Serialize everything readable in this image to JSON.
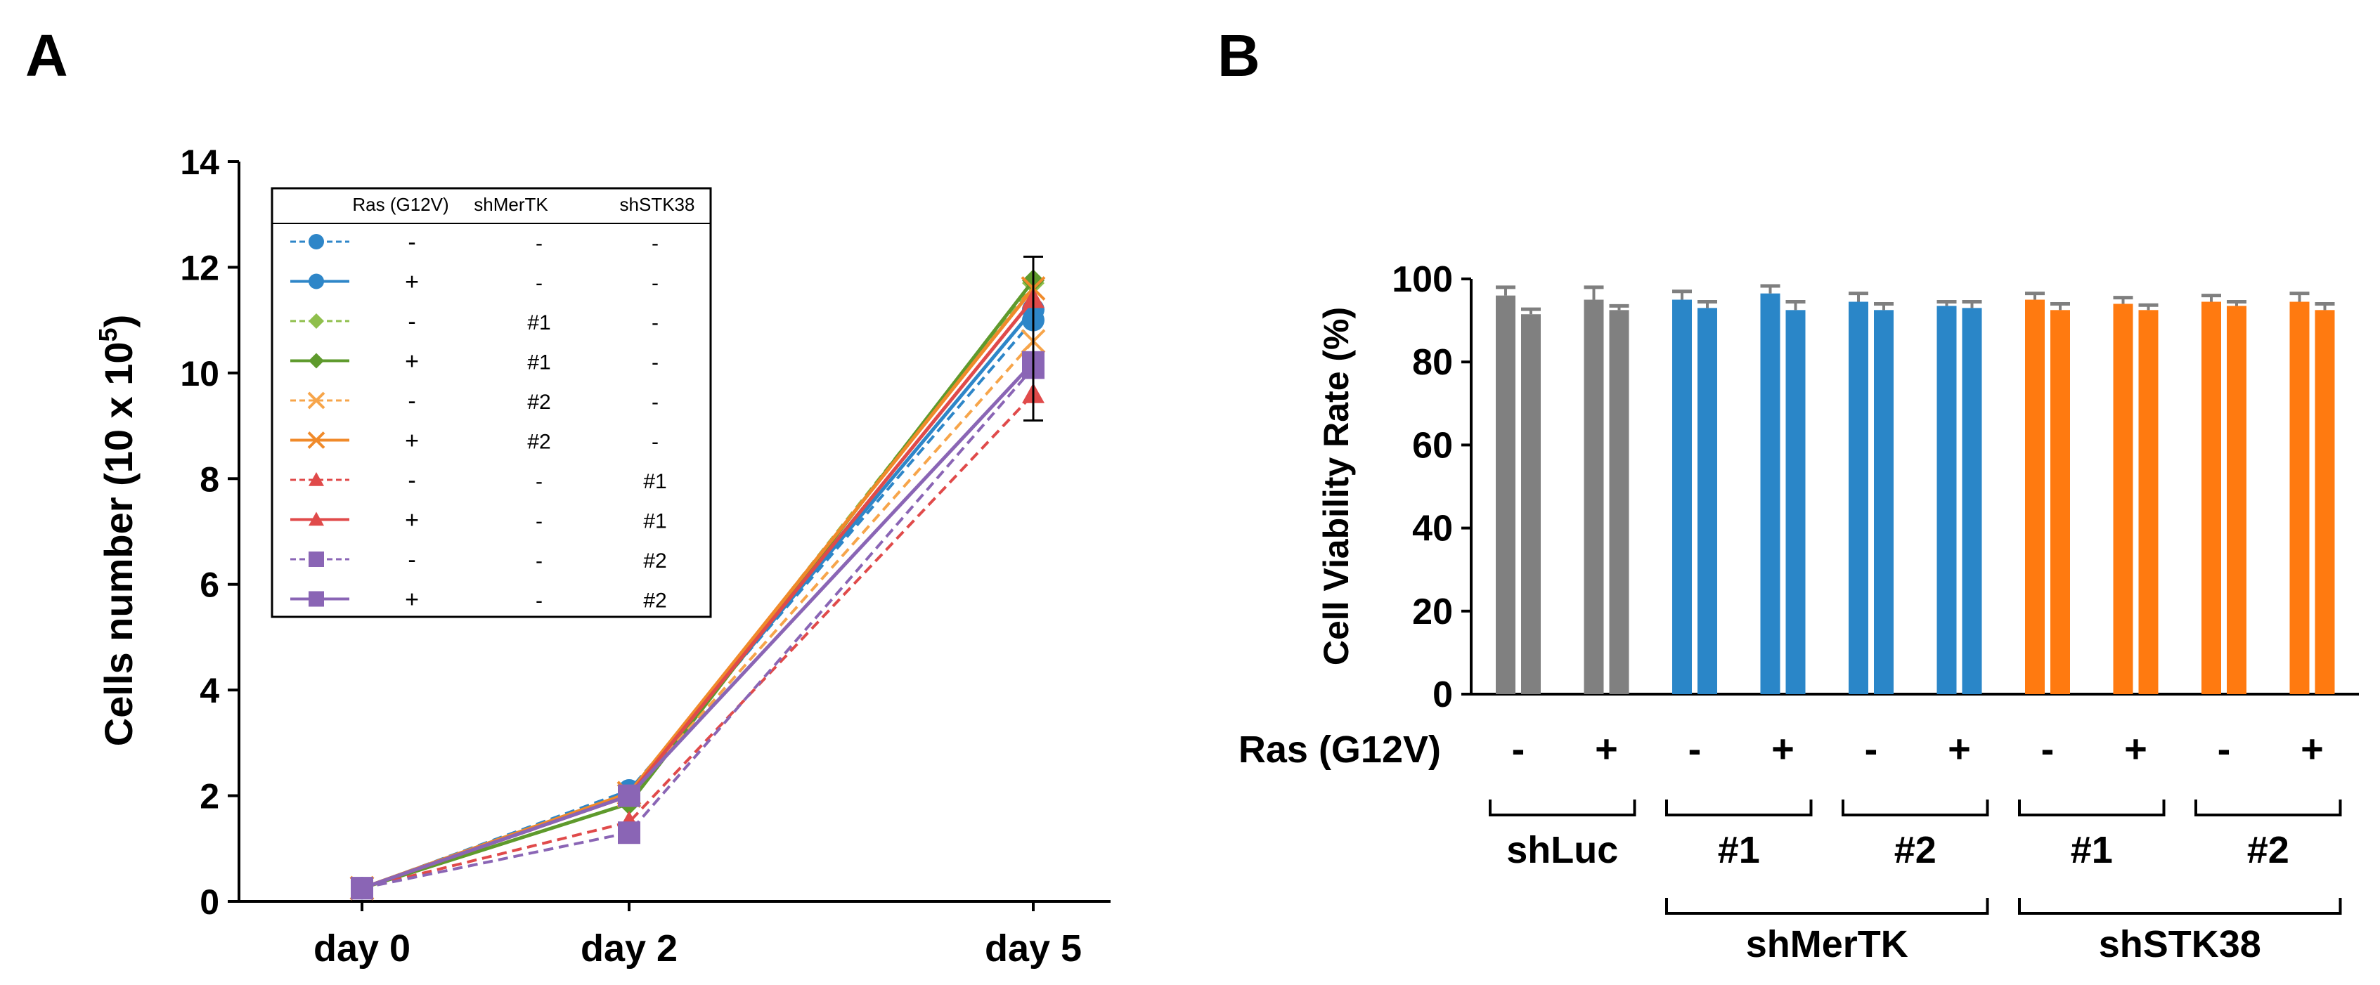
{
  "panel_labels": {
    "a": "A",
    "b": "B"
  },
  "chart_data": [
    {
      "type": "line",
      "panel": "A",
      "title": "",
      "xlabel": "",
      "ylabel_main": "Cells number (10 x 10",
      "ylabel_sup": "5",
      "ylabel_tail": ")",
      "categories": [
        "day 0",
        "day 2",
        "day 5"
      ],
      "ylim": [
        0,
        14
      ],
      "yticks": [
        "0",
        "2",
        "4",
        "6",
        "8",
        "10",
        "12",
        "14"
      ],
      "error_bar_day5": [
        9.1,
        12.2
      ],
      "legend": {
        "position": "upper-left",
        "headers": [
          "Ras (G12V)",
          "shMerTK",
          "shSTK38"
        ],
        "rows": [
          {
            "ras": "-",
            "mertk": "-",
            "stk": "-"
          },
          {
            "ras": "+",
            "mertk": "-",
            "stk": "-"
          },
          {
            "ras": "-",
            "mertk": "#1",
            "stk": "-"
          },
          {
            "ras": "+",
            "mertk": "#1",
            "stk": "-"
          },
          {
            "ras": "-",
            "mertk": "#2",
            "stk": "-"
          },
          {
            "ras": "+",
            "mertk": "#2",
            "stk": "-"
          },
          {
            "ras": "-",
            "mertk": "-",
            "stk": "#1"
          },
          {
            "ras": "+",
            "mertk": "-",
            "stk": "#1"
          },
          {
            "ras": "-",
            "mertk": "-",
            "stk": "#2"
          },
          {
            "ras": "+",
            "mertk": "-",
            "stk": "#2"
          }
        ]
      },
      "series": [
        {
          "name": "Ras - / shMerTK - / shSTK38 -",
          "color": "#2e86c8",
          "marker": "circle",
          "dashed": true,
          "values": [
            0.25,
            2.1,
            11.0
          ]
        },
        {
          "name": "Ras + / shMerTK - / shSTK38 -",
          "color": "#2e86c8",
          "marker": "circle",
          "dashed": false,
          "values": [
            0.25,
            2.05,
            11.2
          ]
        },
        {
          "name": "Ras - / shMerTK #1 / shSTK38 -",
          "color": "#8fbf4c",
          "marker": "diamond",
          "dashed": true,
          "values": [
            0.25,
            2.0,
            11.7
          ]
        },
        {
          "name": "Ras + / shMerTK #1 / shSTK38 -",
          "color": "#5e9a2c",
          "marker": "diamond",
          "dashed": false,
          "values": [
            0.25,
            1.85,
            11.75
          ]
        },
        {
          "name": "Ras - / shMerTK #2 / shSTK38 -",
          "color": "#f7a54a",
          "marker": "x",
          "dashed": true,
          "values": [
            0.25,
            2.0,
            10.6
          ]
        },
        {
          "name": "Ras + / shMerTK #2 / shSTK38 -",
          "color": "#f08a2a",
          "marker": "x",
          "dashed": false,
          "values": [
            0.25,
            2.05,
            11.6
          ]
        },
        {
          "name": "Ras - / shMerTK - / shSTK38 #1",
          "color": "#e04a4a",
          "marker": "triangle",
          "dashed": true,
          "values": [
            0.25,
            1.5,
            9.6
          ]
        },
        {
          "name": "Ras + / shMerTK - / shSTK38 #1",
          "color": "#e04a4a",
          "marker": "triangle",
          "dashed": false,
          "values": [
            0.25,
            2.0,
            11.4
          ]
        },
        {
          "name": "Ras - / shMerTK - / shSTK38 #2",
          "color": "#8a65b5",
          "marker": "square",
          "dashed": true,
          "values": [
            0.25,
            1.3,
            10.1
          ]
        },
        {
          "name": "Ras + / shMerTK - / shSTK38 #2",
          "color": "#8a65b5",
          "marker": "square",
          "dashed": false,
          "values": [
            0.25,
            2.0,
            10.2
          ]
        }
      ]
    },
    {
      "type": "bar",
      "panel": "B",
      "title": "",
      "ylabel": "Cell Viability Rate (%)",
      "ylim": [
        0,
        100
      ],
      "yticks": [
        "0",
        "20",
        "40",
        "60",
        "80",
        "100"
      ],
      "row_label": "Ras (G12V)",
      "ras_signs": [
        "-",
        "+",
        "-",
        "+",
        "-",
        "+",
        "-",
        "+",
        "-",
        "+"
      ],
      "group_labels": [
        "shLuc",
        "#1",
        "#2",
        "#1",
        "#2"
      ],
      "super_groups": [
        "shMerTK",
        "shSTK38"
      ],
      "colors": {
        "shLuc": "#808080",
        "shMerTK": "#2a86c8",
        "shSTK38": "#ff7a10",
        "error": "#7f7f7f"
      },
      "bars": [
        {
          "group": "shLuc",
          "ras": "-",
          "values": [
            96,
            91.5
          ],
          "errors": [
            2,
            1.2
          ]
        },
        {
          "group": "shLuc",
          "ras": "+",
          "values": [
            95,
            92.5
          ],
          "errors": [
            3,
            1
          ]
        },
        {
          "group": "shMerTK",
          "ras": "-",
          "values": [
            95,
            93
          ],
          "errors": [
            2,
            1.5
          ]
        },
        {
          "group": "shMerTK",
          "ras": "+",
          "values": [
            96.5,
            92.5
          ],
          "errors": [
            1.8,
            2
          ]
        },
        {
          "group": "shMerTK",
          "ras": "-",
          "values": [
            94.5,
            92.5
          ],
          "errors": [
            2,
            1.5
          ]
        },
        {
          "group": "shMerTK",
          "ras": "+",
          "values": [
            93.5,
            93
          ],
          "errors": [
            1,
            1.5
          ]
        },
        {
          "group": "shSTK38",
          "ras": "-",
          "values": [
            95,
            92.5
          ],
          "errors": [
            1.5,
            1.5
          ]
        },
        {
          "group": "shSTK38",
          "ras": "+",
          "values": [
            94,
            92.5
          ],
          "errors": [
            1.5,
            1.2
          ]
        },
        {
          "group": "shSTK38",
          "ras": "-",
          "values": [
            94.5,
            93.5
          ],
          "errors": [
            1.5,
            1
          ]
        },
        {
          "group": "shSTK38",
          "ras": "+",
          "values": [
            94.5,
            92.5
          ],
          "errors": [
            2,
            1.5
          ]
        }
      ]
    }
  ]
}
